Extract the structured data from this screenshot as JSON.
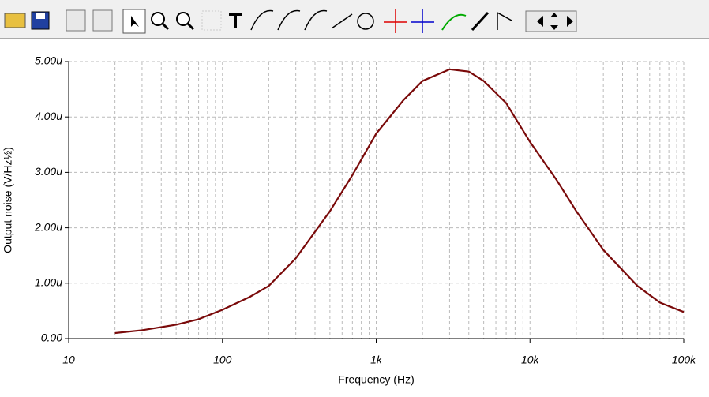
{
  "chart_data": {
    "type": "line",
    "xlabel": "Frequency (Hz)",
    "ylabel": "Output noise (V/Hz½)",
    "x": [
      20,
      30,
      50,
      70,
      100,
      150,
      200,
      300,
      500,
      700,
      1000,
      1500,
      2000,
      3000,
      4000,
      5000,
      7000,
      10000,
      15000,
      20000,
      30000,
      50000,
      70000,
      100000
    ],
    "series": [
      {
        "name": "Output noise",
        "color": "#7a0a0a",
        "values": [
          0.1,
          0.15,
          0.25,
          0.35,
          0.52,
          0.75,
          0.95,
          1.45,
          2.3,
          2.95,
          3.7,
          4.3,
          4.65,
          4.86,
          4.82,
          4.65,
          4.25,
          3.55,
          2.85,
          2.3,
          1.6,
          0.95,
          0.65,
          0.48
        ]
      }
    ],
    "xscale": "log",
    "xlim": [
      10,
      100000
    ],
    "xticks": [
      10,
      100,
      {
        "value": 1000,
        "label": "1k"
      },
      {
        "value": 10000,
        "label": "10k"
      },
      {
        "value": 100000,
        "label": "100k"
      }
    ],
    "xminorticks": [
      20,
      30,
      40,
      50,
      60,
      70,
      80,
      90,
      200,
      300,
      400,
      500,
      600,
      700,
      800,
      900,
      2000,
      3000,
      4000,
      5000,
      6000,
      7000,
      8000,
      9000,
      20000,
      30000,
      40000,
      50000,
      60000,
      70000,
      80000,
      90000
    ],
    "ylim": [
      0,
      5
    ],
    "yticks": [
      {
        "value": 0,
        "label": "0.00"
      },
      {
        "value": 1,
        "label": "1.00u"
      },
      {
        "value": 2,
        "label": "2.00u"
      },
      {
        "value": 3,
        "label": "3.00u"
      },
      {
        "value": 4,
        "label": "4.00u"
      },
      {
        "value": 5,
        "label": "5.00u"
      }
    ],
    "grid": true
  }
}
